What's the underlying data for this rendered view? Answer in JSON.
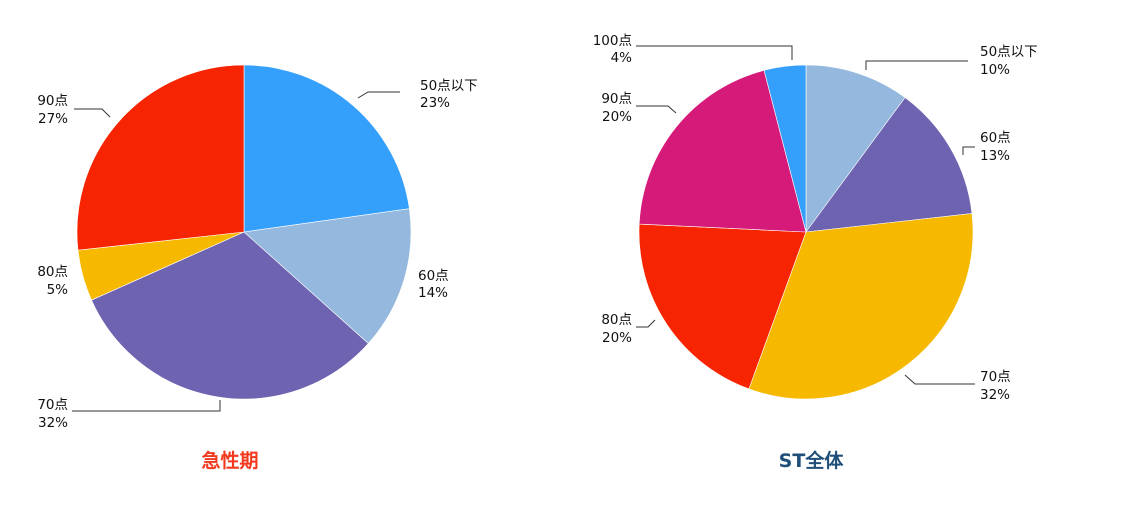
{
  "colors": {
    "below50": "#35a0fc",
    "pt60": "#95b9de",
    "pt70": "#6d63b0",
    "pt80": "#f6b900",
    "pt90": "#f62400",
    "pt100": "#3a9ffc",
    "st_below50": "#95b9de",
    "st_pt60": "#6d63b0",
    "st_pt70": "#f6b900",
    "st_pt80": "#f62400",
    "st_pt90": "#d51a79",
    "acute_caption": "#f23a1e",
    "st_caption": "#1f4e79"
  },
  "chart_data": [
    {
      "type": "pie",
      "title": "急性期",
      "start_angle_deg": 0,
      "slices": [
        {
          "label": "50点以下",
          "value": 23,
          "value_label": "23%",
          "color": "#35a0fc"
        },
        {
          "label": "60点",
          "value": 14,
          "value_label": "14%",
          "color": "#95b9de"
        },
        {
          "label": "70点",
          "value": 32,
          "value_label": "32%",
          "color": "#6d63b0"
        },
        {
          "label": "80点",
          "value": 5,
          "value_label": "5%",
          "color": "#f6b900"
        },
        {
          "label": "90点",
          "value": 27,
          "value_label": "27%",
          "color": "#f62400"
        }
      ]
    },
    {
      "type": "pie",
      "title": "ST全体",
      "start_angle_deg": 0,
      "slices": [
        {
          "label": "50点以下",
          "value": 10,
          "value_label": "10%",
          "color": "#95b9de"
        },
        {
          "label": "60点",
          "value": 13,
          "value_label": "13%",
          "color": "#6d63b0"
        },
        {
          "label": "70点",
          "value": 32,
          "value_label": "32%",
          "color": "#f6b900"
        },
        {
          "label": "80点",
          "value": 20,
          "value_label": "20%",
          "color": "#f62400"
        },
        {
          "label": "90点",
          "value": 20,
          "value_label": "20%",
          "color": "#d51a79"
        },
        {
          "label": "100点",
          "value": 4,
          "value_label": "4%",
          "color": "#35a0fc"
        }
      ]
    }
  ]
}
